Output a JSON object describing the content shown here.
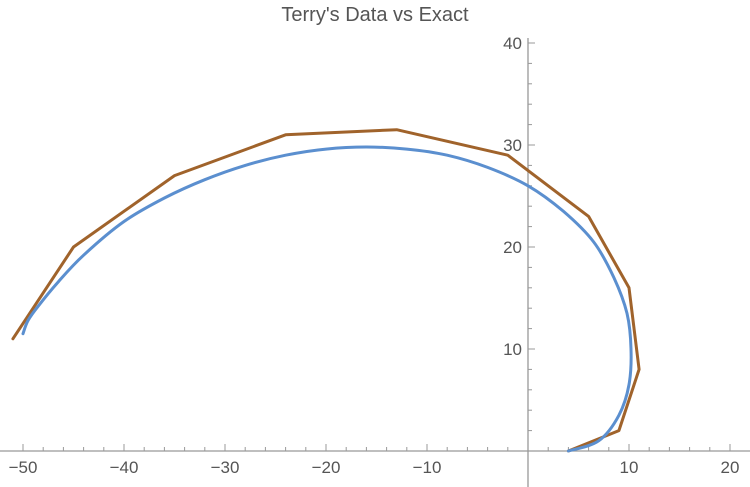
{
  "chart_data": {
    "type": "line",
    "title": "Terry's Data vs Exact",
    "xlabel": "",
    "ylabel": "",
    "xlim": [
      -51,
      20.5
    ],
    "ylim": [
      0,
      40.5
    ],
    "grid": false,
    "x_ticks": [
      -50,
      -40,
      -30,
      -20,
      -10,
      10,
      20
    ],
    "y_ticks": [
      10,
      20,
      30,
      40
    ],
    "series": [
      {
        "color": "#a0632b",
        "points": [
          [
            4,
            0
          ],
          [
            9,
            2
          ],
          [
            11,
            8
          ],
          [
            10,
            16
          ],
          [
            6,
            23
          ],
          [
            -2,
            29
          ],
          [
            -13,
            31.5
          ],
          [
            -24,
            31
          ],
          [
            -35,
            27
          ],
          [
            -45,
            20
          ],
          [
            -51,
            11
          ]
        ]
      },
      {
        "color": "#5b8fcf",
        "points": [
          [
            4,
            0
          ],
          [
            7,
            1
          ],
          [
            9,
            3.5
          ],
          [
            10,
            6.5
          ],
          [
            10.2,
            10
          ],
          [
            9.8,
            13.5
          ],
          [
            8.5,
            17
          ],
          [
            6.5,
            20.5
          ],
          [
            3.5,
            23.5
          ],
          [
            0,
            26
          ],
          [
            -4,
            27.8
          ],
          [
            -8,
            29
          ],
          [
            -12,
            29.6
          ],
          [
            -16,
            29.8
          ],
          [
            -20,
            29.6
          ],
          [
            -24,
            29
          ],
          [
            -28,
            28
          ],
          [
            -32,
            26.6
          ],
          [
            -36,
            24.8
          ],
          [
            -40,
            22.5
          ],
          [
            -44,
            19.2
          ],
          [
            -46.5,
            16.6
          ],
          [
            -48.5,
            14.2
          ],
          [
            -49.5,
            12.8
          ],
          [
            -50,
            11.5
          ]
        ]
      }
    ]
  }
}
